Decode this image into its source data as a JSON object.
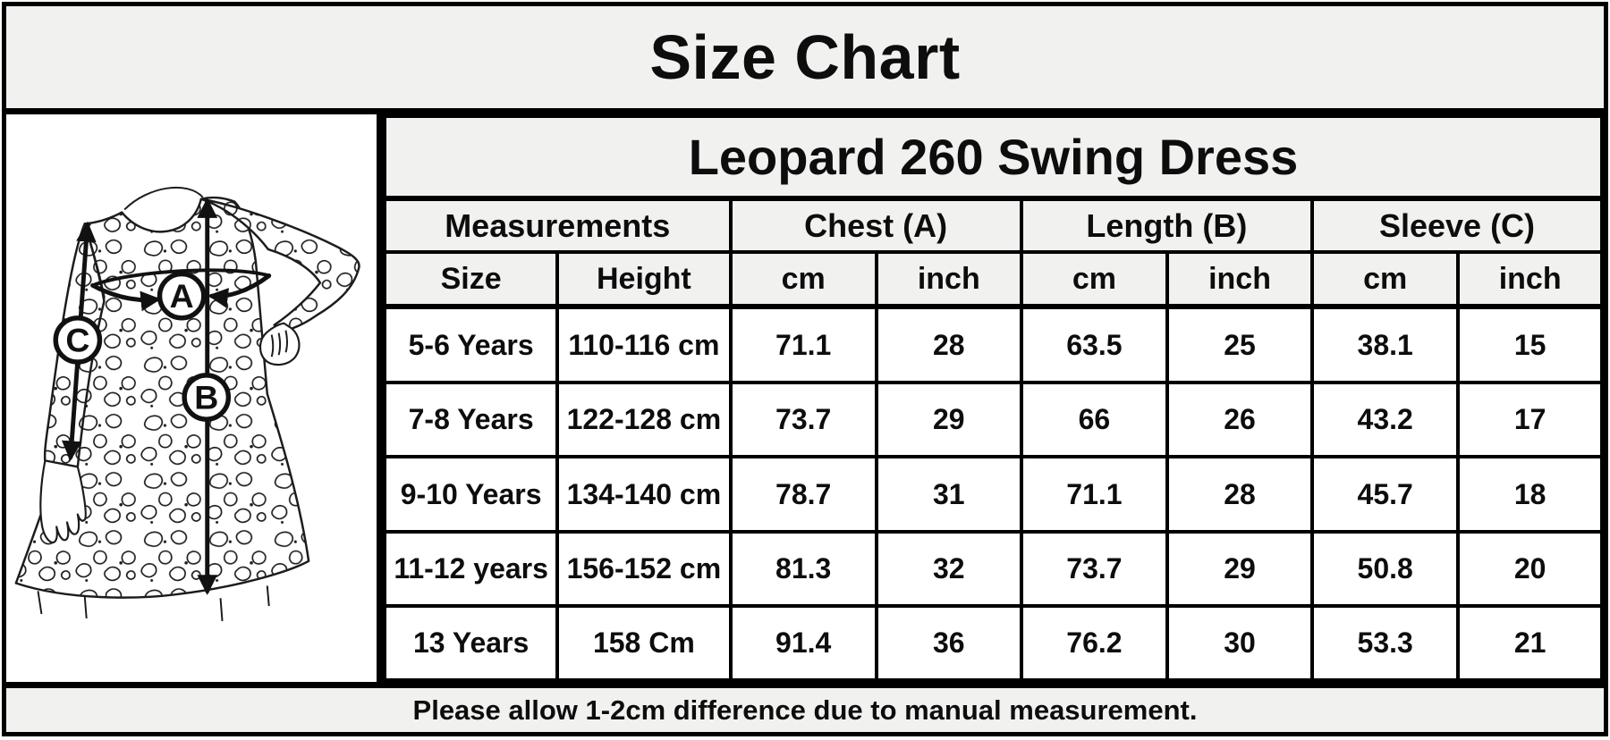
{
  "banner": {
    "title": "Size Chart"
  },
  "diagram": {
    "description": "Black-and-white line drawing of a long-sleeved leopard print swing dress, model with hand on hip, with measurement arrows",
    "labels": {
      "chest": "A",
      "length": "B",
      "sleeve": "C"
    }
  },
  "table": {
    "title": "Leopard 260 Swing Dress",
    "group_headers": [
      {
        "label": "Measurements"
      },
      {
        "label": "Chest (A)"
      },
      {
        "label": "Length (B)"
      },
      {
        "label": "Sleeve (C)"
      }
    ],
    "sub_headers": [
      "Size",
      "Height",
      "cm",
      "inch",
      "cm",
      "inch",
      "cm",
      "inch"
    ],
    "rows": [
      [
        "5-6 Years",
        "110-116 cm",
        "71.1",
        "28",
        "63.5",
        "25",
        "38.1",
        "15"
      ],
      [
        "7-8 Years",
        "122-128 cm",
        "73.7",
        "29",
        "66",
        "26",
        "43.2",
        "17"
      ],
      [
        "9-10 Years",
        "134-140 cm",
        "78.7",
        "31",
        "71.1",
        "28",
        "45.7",
        "18"
      ],
      [
        "11-12 years",
        "156-152 cm",
        "81.3",
        "32",
        "73.7",
        "29",
        "50.8",
        "20"
      ],
      [
        "13 Years",
        "158 Cm",
        "91.4",
        "36",
        "76.2",
        "30",
        "53.3",
        "21"
      ]
    ],
    "column_keys": [
      "size",
      "height",
      "chest-cm",
      "chest-inch",
      "length-cm",
      "length-inch",
      "sleeve-cm",
      "sleeve-inch"
    ]
  },
  "footer": {
    "note": "Please allow 1-2cm difference due to manual measurement."
  },
  "colors": {
    "header_bg": "#f1f1f0",
    "cell_bg": "#ffffff",
    "border": "#000000",
    "text": "#0d0d0d",
    "line_art": "#1c1c1c"
  }
}
